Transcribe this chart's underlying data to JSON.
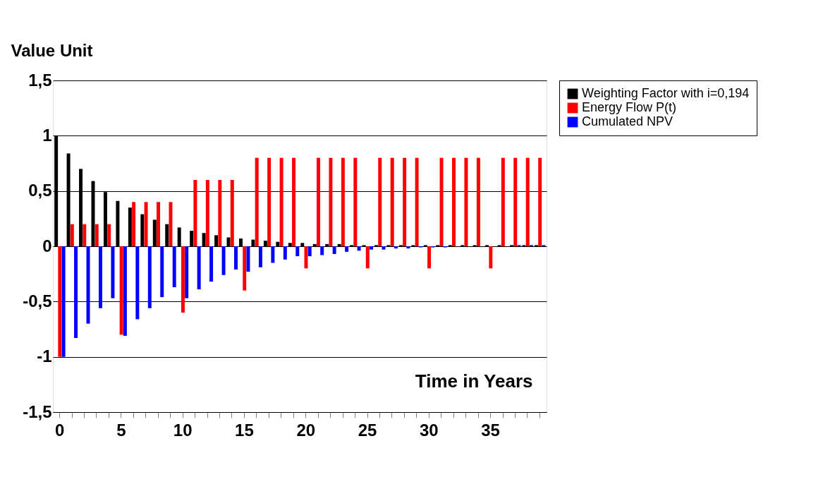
{
  "chart_data": {
    "type": "bar",
    "ylabel": "Value Unit",
    "xlabel": "Time in Years",
    "categories": [
      "0",
      null,
      null,
      null,
      null,
      "5",
      null,
      null,
      null,
      null,
      "10",
      null,
      null,
      null,
      null,
      "15",
      null,
      null,
      null,
      null,
      "20",
      null,
      null,
      null,
      null,
      "25",
      null,
      null,
      null,
      null,
      "30",
      null,
      null,
      null,
      null,
      "35",
      null,
      null,
      null,
      null
    ],
    "series": [
      {
        "name": "Weighting Factor with i=0,194",
        "color": "#000000",
        "values": [
          1,
          0.84,
          0.7,
          0.59,
          0.49,
          0.41,
          0.35,
          0.29,
          0.24,
          0.2,
          0.17,
          0.14,
          0.12,
          0.1,
          0.08,
          0.07,
          0.06,
          0.05,
          0.04,
          0.03,
          0.03,
          0.02,
          0.02,
          0.02,
          0.01,
          0.01,
          0.01,
          0.01,
          0.01,
          0.01,
          0.01,
          0.01,
          0.01,
          0.01,
          0.01,
          0.01,
          0.01,
          0.01,
          0.01,
          0.01
        ]
      },
      {
        "name": "Energy Flow P(t)",
        "color": "#ff0000",
        "values": [
          -1,
          0.2,
          0.2,
          0.2,
          0.2,
          -0.8,
          0.4,
          0.4,
          0.4,
          0.4,
          -0.6,
          0.6,
          0.6,
          0.6,
          0.6,
          -0.4,
          0.8,
          0.8,
          0.8,
          0.8,
          -0.2,
          0.8,
          0.8,
          0.8,
          0.8,
          -0.2,
          0.8,
          0.8,
          0.8,
          0.8,
          -0.2,
          0.8,
          0.8,
          0.8,
          0.8,
          -0.2,
          0.8,
          0.8,
          0.8,
          0.8
        ]
      },
      {
        "name": "Cumulated NPV",
        "color": "#0000ff",
        "values": [
          -1,
          -0.83,
          -0.7,
          -0.56,
          -0.47,
          -0.81,
          -0.66,
          -0.56,
          -0.46,
          -0.37,
          -0.47,
          -0.39,
          -0.32,
          -0.26,
          -0.21,
          -0.23,
          -0.19,
          -0.15,
          -0.12,
          -0.09,
          -0.09,
          -0.08,
          -0.07,
          -0.05,
          -0.04,
          -0.03,
          -0.03,
          -0.02,
          -0.02,
          -0.01,
          -0.01,
          -0.01,
          0,
          0,
          0,
          0,
          0,
          0.01,
          0.01,
          0.01
        ]
      }
    ],
    "ylim": [
      -1.5,
      1.5
    ],
    "yticks": [
      {
        "value": -1.5,
        "label": "-1,5"
      },
      -1,
      {
        "value": -0.5,
        "label": "-0,5"
      },
      0,
      {
        "value": 0.5,
        "label": "0,5"
      },
      1,
      {
        "value": 1.5,
        "label": "1,5"
      }
    ],
    "grid": "y",
    "legend": "top right"
  }
}
